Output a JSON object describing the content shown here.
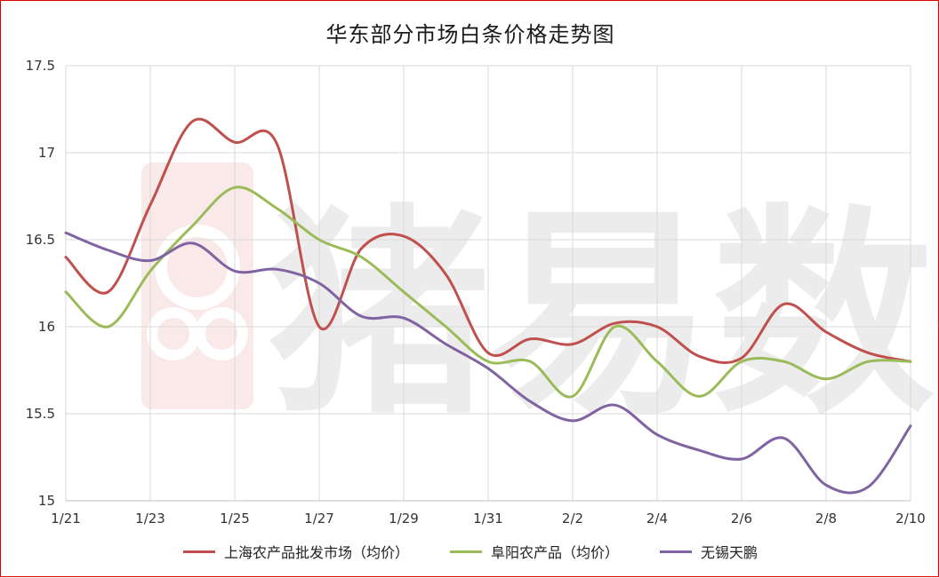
{
  "chart_data": {
    "type": "line",
    "title": "华东部分市场白条价格走势图",
    "xlabel": "",
    "ylabel": "",
    "categories": [
      "1/21",
      "1/22",
      "1/23",
      "1/24",
      "1/25",
      "1/26",
      "1/27",
      "1/28",
      "1/29",
      "1/30",
      "1/31",
      "2/1",
      "2/2",
      "2/3",
      "2/4",
      "2/5",
      "2/6",
      "2/7",
      "2/8",
      "2/9",
      "2/10"
    ],
    "x_tick_labels": [
      "1/21",
      "1/23",
      "1/25",
      "1/27",
      "1/29",
      "1/31",
      "2/2",
      "2/4",
      "2/6",
      "2/8",
      "2/10"
    ],
    "y_tick_labels": [
      "15",
      "15.5",
      "16",
      "16.5",
      "17",
      "17.5"
    ],
    "ylim": [
      15,
      17.5
    ],
    "grid": true,
    "legend_position": "bottom",
    "series": [
      {
        "name": "上海农产品批发市场（均价）",
        "color": "#c0504d",
        "values": [
          16.4,
          16.2,
          16.7,
          17.18,
          17.06,
          17.05,
          16.0,
          16.45,
          16.52,
          16.3,
          15.85,
          15.93,
          15.9,
          16.02,
          16.0,
          15.83,
          15.82,
          16.13,
          15.97,
          15.85,
          15.8
        ]
      },
      {
        "name": "阜阳农产品（均价）",
        "color": "#9bbb59",
        "values": [
          16.2,
          16.0,
          16.32,
          16.58,
          16.8,
          16.68,
          16.5,
          16.4,
          16.2,
          16.0,
          15.8,
          15.8,
          15.6,
          16.0,
          15.8,
          15.6,
          15.8,
          15.8,
          15.7,
          15.8,
          15.8
        ]
      },
      {
        "name": "无锡天鹏",
        "color": "#8064a2",
        "values": [
          16.54,
          16.44,
          16.38,
          16.48,
          16.32,
          16.33,
          16.25,
          16.06,
          16.05,
          15.9,
          15.76,
          15.57,
          15.46,
          15.55,
          15.38,
          15.29,
          15.24,
          15.36,
          15.09,
          15.08,
          15.43
        ]
      }
    ]
  }
}
